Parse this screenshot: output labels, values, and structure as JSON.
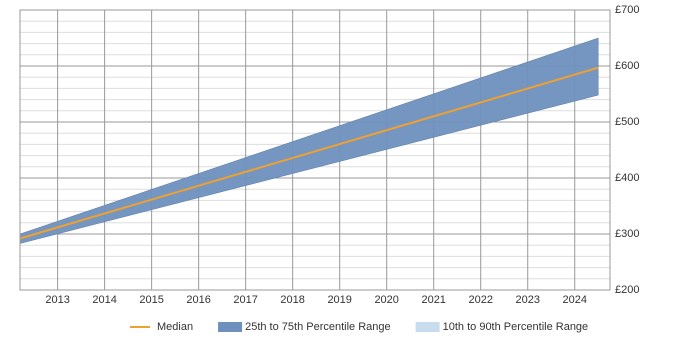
{
  "chart_data": {
    "type": "band-line",
    "x": [
      2012.2,
      2024.5
    ],
    "xlim": [
      2012.2,
      2024.75
    ],
    "xticks": [
      2013,
      2014,
      2015,
      2016,
      2017,
      2018,
      2019,
      2020,
      2021,
      2022,
      2023,
      2024
    ],
    "ylim": [
      200,
      700
    ],
    "yticks": [
      {
        "value": 200,
        "label": "£200"
      },
      {
        "value": 300,
        "label": "£300"
      },
      {
        "value": 400,
        "label": "£400"
      },
      {
        "value": 500,
        "label": "£500"
      },
      {
        "value": 600,
        "label": "£600"
      },
      {
        "value": 700,
        "label": "£700"
      }
    ],
    "minor_yticks": [
      220,
      240,
      260,
      280,
      320,
      340,
      360,
      380,
      420,
      440,
      460,
      480,
      520,
      540,
      560,
      580,
      620,
      640,
      660,
      680
    ],
    "grid": true,
    "series": [
      {
        "name": "Median",
        "color": "#f0a030",
        "values": [
          292,
          597
        ]
      },
      {
        "name": "25th to 75th Percentile Range",
        "color": "#6d90bd",
        "low": [
          283,
          548
        ],
        "high": [
          300,
          650
        ]
      },
      {
        "name": "10th to 90th Percentile Range",
        "color": "#c9dcee"
      }
    ]
  }
}
